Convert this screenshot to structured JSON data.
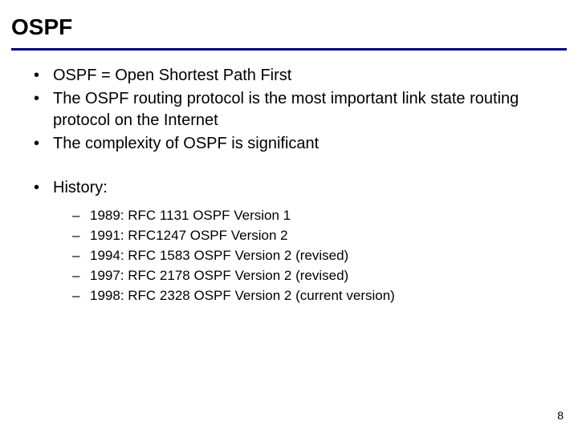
{
  "title": "OSPF",
  "accent_color": "#000080",
  "bullets": {
    "b1": "OSPF = Open Shortest Path First",
    "b2": "The OSPF routing protocol is the most important link state routing protocol on the Internet",
    "b3": "The complexity of OSPF is significant",
    "b4": "History:"
  },
  "history": {
    "h1": "1989: RFC 1131  OSPF Version 1",
    "h2": "1991: RFC1247   OSPF Version 2",
    "h3": "1994: RFC 1583 OSPF Version 2 (revised)",
    "h4": "1997: RFC 2178 OSPF Version 2 (revised)",
    "h5": "1998: RFC 2328 OSPF Version 2 (current version)"
  },
  "page_number": "8",
  "style": {
    "title_fontsize": 28,
    "body_fontsize": 20,
    "sub_fontsize": 17,
    "text_color": "#000000",
    "background_color": "#ffffff"
  }
}
